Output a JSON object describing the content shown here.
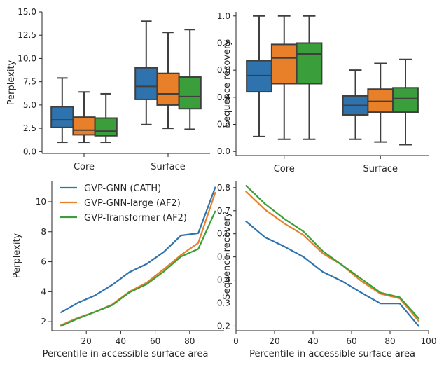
{
  "colors": {
    "blue": "#2f73ae",
    "orange": "#e8802a",
    "green": "#3a9e3a",
    "whisker": "#3f3f3f"
  },
  "chart_data": [
    {
      "id": "tl",
      "type": "box",
      "ylabel": "Perplexity",
      "categories": [
        "Core",
        "Surface"
      ],
      "yticks": [
        "0.0",
        "2.5",
        "5.0",
        "7.5",
        "10.0",
        "12.5",
        "15.0"
      ],
      "ylim": [
        -0.2,
        15.0
      ],
      "series": [
        {
          "color": "blue",
          "boxes": [
            {
              "min": 1.0,
              "q1": 2.6,
              "median": 3.4,
              "q3": 4.8,
              "max": 7.9
            },
            {
              "min": 2.9,
              "q1": 5.6,
              "median": 7.0,
              "q3": 9.0,
              "max": 14.0
            }
          ]
        },
        {
          "color": "orange",
          "boxes": [
            {
              "min": 1.0,
              "q1": 1.8,
              "median": 2.3,
              "q3": 3.7,
              "max": 6.4
            },
            {
              "min": 2.5,
              "q1": 5.0,
              "median": 6.2,
              "q3": 8.4,
              "max": 12.8
            }
          ]
        },
        {
          "color": "green",
          "boxes": [
            {
              "min": 1.0,
              "q1": 1.7,
              "median": 2.2,
              "q3": 3.6,
              "max": 6.2
            },
            {
              "min": 2.4,
              "q1": 4.6,
              "median": 5.9,
              "q3": 8.0,
              "max": 13.1
            }
          ]
        }
      ]
    },
    {
      "id": "tr",
      "type": "box",
      "ylabel": "Sequence recovery",
      "categories": [
        "Core",
        "Surface"
      ],
      "yticks": [
        "0.0",
        "0.2",
        "0.4",
        "0.6",
        "0.8",
        "1.0"
      ],
      "ylim": [
        -0.03,
        1.03
      ],
      "series": [
        {
          "color": "blue",
          "boxes": [
            {
              "min": 0.11,
              "q1": 0.44,
              "median": 0.56,
              "q3": 0.67,
              "max": 1.0
            },
            {
              "min": 0.09,
              "q1": 0.27,
              "median": 0.34,
              "q3": 0.41,
              "max": 0.6
            }
          ]
        },
        {
          "color": "orange",
          "boxes": [
            {
              "min": 0.09,
              "q1": 0.5,
              "median": 0.69,
              "q3": 0.79,
              "max": 1.0
            },
            {
              "min": 0.07,
              "q1": 0.29,
              "median": 0.37,
              "q3": 0.46,
              "max": 0.65
            }
          ]
        },
        {
          "color": "green",
          "boxes": [
            {
              "min": 0.09,
              "q1": 0.5,
              "median": 0.72,
              "q3": 0.8,
              "max": 1.0
            },
            {
              "min": 0.05,
              "q1": 0.29,
              "median": 0.39,
              "q3": 0.47,
              "max": 0.68
            }
          ]
        }
      ]
    },
    {
      "id": "bl",
      "type": "line",
      "xlabel": "Percentile in accessible surface area",
      "ylabel": "Perplexity",
      "xticks": [
        "20",
        "40",
        "60",
        "80"
      ],
      "yticks": [
        "2",
        "4",
        "6",
        "8",
        "10"
      ],
      "xlim": [
        0,
        100
      ],
      "ylim": [
        1.4,
        11.4
      ],
      "legend_position": "top-left",
      "x": [
        5,
        15,
        25,
        35,
        45,
        55,
        65,
        75,
        85,
        95
      ],
      "series": [
        {
          "name": "GVP-GNN (CATH)",
          "color": "blue",
          "values": [
            2.6,
            3.25,
            3.75,
            4.45,
            5.3,
            5.85,
            6.65,
            7.75,
            7.9,
            11.0
          ]
        },
        {
          "name": "GVP-GNN-large (AF2)",
          "color": "orange",
          "values": [
            1.75,
            2.25,
            2.65,
            3.15,
            4.0,
            4.6,
            5.5,
            6.45,
            7.25,
            10.65
          ]
        },
        {
          "name": "GVP-Transformer (AF2)",
          "color": "green",
          "values": [
            1.7,
            2.2,
            2.65,
            3.1,
            3.95,
            4.5,
            5.35,
            6.35,
            6.85,
            9.4
          ]
        }
      ]
    },
    {
      "id": "br",
      "type": "line",
      "xlabel": "Percentile in accessible surface area",
      "ylabel": "Sequence recovery",
      "xticks": [
        "0",
        "20",
        "40",
        "60",
        "80",
        "100"
      ],
      "yticks": [
        "0.2",
        "0.3",
        "0.4",
        "0.5",
        "0.6",
        "0.7",
        "0.8"
      ],
      "xlim": [
        0,
        100
      ],
      "ylim": [
        0.18,
        0.83
      ],
      "x": [
        5,
        15,
        25,
        35,
        45,
        55,
        65,
        75,
        85,
        95
      ],
      "series": [
        {
          "color": "blue",
          "values": [
            0.655,
            0.585,
            0.545,
            0.5,
            0.435,
            0.395,
            0.345,
            0.298,
            0.298,
            0.198
          ]
        },
        {
          "color": "orange",
          "values": [
            0.785,
            0.705,
            0.645,
            0.595,
            0.515,
            0.465,
            0.395,
            0.34,
            0.32,
            0.22
          ]
        },
        {
          "color": "green",
          "values": [
            0.81,
            0.73,
            0.665,
            0.61,
            0.525,
            0.465,
            0.405,
            0.345,
            0.325,
            0.232
          ]
        }
      ]
    }
  ]
}
